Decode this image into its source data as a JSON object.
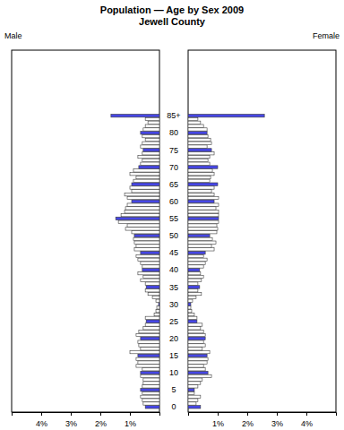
{
  "chart_data": {
    "type": "bar",
    "orientation": "horizontal",
    "title": "Population — Age by Sex 2009",
    "subtitle": "Jewell County",
    "categories": [
      "0",
      null,
      null,
      null,
      null,
      "5",
      null,
      null,
      null,
      null,
      "10",
      null,
      null,
      null,
      null,
      "15",
      null,
      null,
      null,
      null,
      "20",
      null,
      null,
      null,
      null,
      "25",
      null,
      null,
      null,
      null,
      "30",
      null,
      null,
      null,
      null,
      "35",
      null,
      null,
      null,
      null,
      "40",
      null,
      null,
      null,
      null,
      "45",
      null,
      null,
      null,
      null,
      "50",
      null,
      null,
      null,
      null,
      "55",
      null,
      null,
      null,
      null,
      "60",
      null,
      null,
      null,
      null,
      "65",
      null,
      null,
      null,
      null,
      "70",
      null,
      null,
      null,
      null,
      "75",
      null,
      null,
      null,
      null,
      "80",
      null,
      null,
      null,
      null,
      "85+"
    ],
    "series": [
      {
        "name": "Male",
        "values": [
          0.48,
          0.55,
          0.58,
          0.64,
          0.58,
          0.64,
          0.58,
          0.55,
          0.55,
          0.64,
          0.64,
          0.58,
          0.79,
          0.73,
          0.79,
          0.73,
          1.0,
          0.64,
          0.7,
          0.73,
          0.64,
          0.79,
          0.7,
          0.55,
          0.48,
          0.45,
          0.48,
          0.18,
          0.12,
          0.09,
          0.03,
          0.12,
          0.24,
          0.39,
          0.48,
          0.45,
          0.48,
          0.64,
          0.55,
          0.73,
          0.58,
          0.58,
          0.64,
          0.73,
          0.79,
          0.64,
          0.85,
          0.79,
          0.85,
          0.88,
          0.85,
          0.94,
          1.15,
          1.09,
          1.39,
          1.48,
          1.3,
          1.18,
          1.15,
          1.09,
          0.94,
          1.09,
          1.18,
          0.94,
          1.0,
          0.94,
          0.88,
          0.79,
          1.0,
          0.88,
          0.7,
          0.64,
          0.58,
          0.73,
          0.58,
          0.55,
          0.64,
          0.58,
          0.48,
          0.58,
          0.64,
          0.55,
          0.48,
          0.39,
          0.48,
          1.64
        ],
        "colors": [
          "#4646e6",
          "#ffffff",
          "#ffffff",
          "#ffffff",
          "#ffffff",
          "#4646e6",
          "#ffffff",
          "#ffffff",
          "#ffffff",
          "#ffffff",
          "#4646e6",
          "#ffffff",
          "#ffffff",
          "#ffffff",
          "#ffffff",
          "#4646e6",
          "#ffffff",
          "#ffffff",
          "#ffffff",
          "#ffffff",
          "#4646e6",
          "#ffffff",
          "#ffffff",
          "#ffffff",
          "#ffffff",
          "#4646e6",
          "#ffffff",
          "#ffffff",
          "#ffffff",
          "#ffffff",
          "#4646e6",
          "#ffffff",
          "#ffffff",
          "#ffffff",
          "#ffffff",
          "#4646e6",
          "#ffffff",
          "#ffffff",
          "#ffffff",
          "#ffffff",
          "#4646e6",
          "#ffffff",
          "#ffffff",
          "#ffffff",
          "#ffffff",
          "#4646e6",
          "#ffffff",
          "#ffffff",
          "#ffffff",
          "#ffffff",
          "#4646e6",
          "#ffffff",
          "#ffffff",
          "#ffffff",
          "#ffffff",
          "#4646e6",
          "#ffffff",
          "#ffffff",
          "#ffffff",
          "#ffffff",
          "#4646e6",
          "#ffffff",
          "#ffffff",
          "#ffffff",
          "#ffffff",
          "#4646e6",
          "#ffffff",
          "#ffffff",
          "#ffffff",
          "#ffffff",
          "#4646e6",
          "#ffffff",
          "#ffffff",
          "#ffffff",
          "#ffffff",
          "#4646e6",
          "#ffffff",
          "#ffffff",
          "#ffffff",
          "#ffffff",
          "#4646e6",
          "#ffffff",
          "#ffffff",
          "#ffffff",
          "#ffffff",
          "#4646e6"
        ]
      },
      {
        "name": "Female",
        "values": [
          0.42,
          0.27,
          0.33,
          0.42,
          0.21,
          0.21,
          0.33,
          0.42,
          0.48,
          0.79,
          0.67,
          0.58,
          0.52,
          0.64,
          0.67,
          0.64,
          0.73,
          0.48,
          0.58,
          0.52,
          0.58,
          0.58,
          0.52,
          0.42,
          0.48,
          0.3,
          0.3,
          0.21,
          0.12,
          0.09,
          0.09,
          0.15,
          0.27,
          0.45,
          0.33,
          0.39,
          0.33,
          0.45,
          0.52,
          0.42,
          0.39,
          0.52,
          0.58,
          0.64,
          0.52,
          0.58,
          0.88,
          0.79,
          0.94,
          0.82,
          0.73,
          0.97,
          1.0,
          0.97,
          1.03,
          1.03,
          1.03,
          1.03,
          0.94,
          1.03,
          0.88,
          1.03,
          0.88,
          0.79,
          0.88,
          1.0,
          0.73,
          0.76,
          0.88,
          0.82,
          1.0,
          0.73,
          0.67,
          0.73,
          0.88,
          0.79,
          0.64,
          0.79,
          0.76,
          0.67,
          0.64,
          0.64,
          0.52,
          0.42,
          0.33,
          2.58
        ],
        "colors": [
          "#4646e6",
          "#ffffff",
          "#ffffff",
          "#ffffff",
          "#ffffff",
          "#4646e6",
          "#ffffff",
          "#ffffff",
          "#ffffff",
          "#ffffff",
          "#4646e6",
          "#ffffff",
          "#ffffff",
          "#ffffff",
          "#ffffff",
          "#4646e6",
          "#ffffff",
          "#ffffff",
          "#ffffff",
          "#ffffff",
          "#4646e6",
          "#ffffff",
          "#ffffff",
          "#ffffff",
          "#ffffff",
          "#4646e6",
          "#ffffff",
          "#ffffff",
          "#ffffff",
          "#ffffff",
          "#4646e6",
          "#ffffff",
          "#ffffff",
          "#ffffff",
          "#ffffff",
          "#4646e6",
          "#ffffff",
          "#ffffff",
          "#ffffff",
          "#ffffff",
          "#4646e6",
          "#ffffff",
          "#ffffff",
          "#ffffff",
          "#ffffff",
          "#4646e6",
          "#ffffff",
          "#ffffff",
          "#ffffff",
          "#ffffff",
          "#4646e6",
          "#ffffff",
          "#ffffff",
          "#ffffff",
          "#ffffff",
          "#4646e6",
          "#ffffff",
          "#ffffff",
          "#ffffff",
          "#ffffff",
          "#4646e6",
          "#ffffff",
          "#ffffff",
          "#ffffff",
          "#ffffff",
          "#4646e6",
          "#ffffff",
          "#ffffff",
          "#ffffff",
          "#ffffff",
          "#4646e6",
          "#ffffff",
          "#ffffff",
          "#ffffff",
          "#ffffff",
          "#4646e6",
          "#ffffff",
          "#ffffff",
          "#ffffff",
          "#ffffff",
          "#4646e6",
          "#ffffff",
          "#ffffff",
          "#ffffff",
          "#ffffff",
          "#4646e6"
        ]
      }
    ],
    "xlim": [
      0,
      5
    ],
    "xticks": [
      {
        "value": 1,
        "label": "1%"
      },
      {
        "value": 2,
        "label": "2%"
      },
      {
        "value": 3,
        "label": "3%"
      },
      {
        "value": 4,
        "label": "4%"
      }
    ]
  }
}
